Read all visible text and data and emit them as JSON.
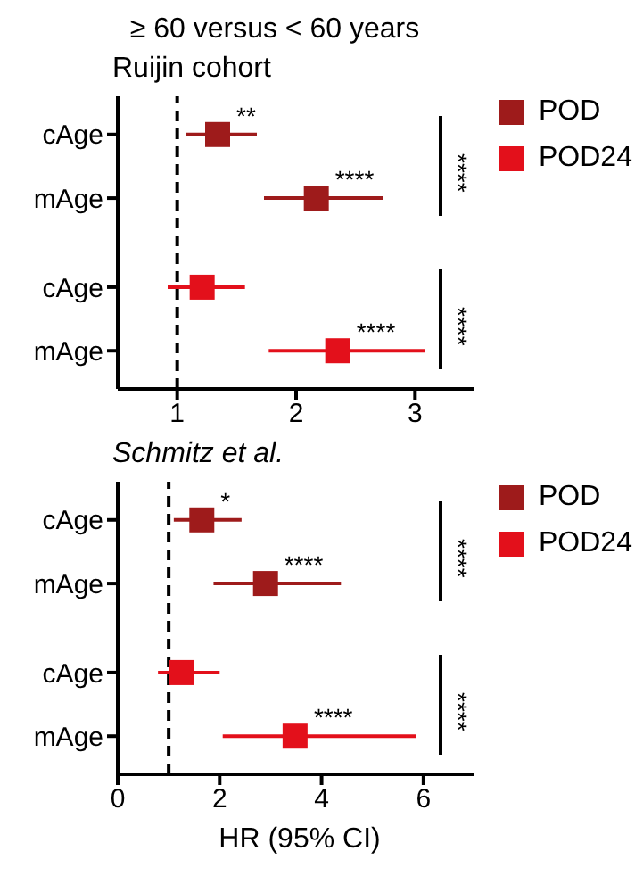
{
  "chart_data": [
    {
      "type": "scatter",
      "orientation": "horizontal",
      "title": "≥ 60 versus < 60 years",
      "subtitle": "Ruijin cohort",
      "categories": [
        "cAge",
        "mAge",
        "cAge",
        "mAge"
      ],
      "series": [
        {
          "name": "POD",
          "color": "#9e1b1b",
          "values": [
            1.34,
            2.17,
            null,
            null
          ],
          "errors": [
            [
              1.07,
              1.67
            ],
            [
              1.73,
              2.73
            ],
            null,
            null
          ],
          "value_labels": [
            "**",
            "****",
            null,
            null
          ]
        },
        {
          "name": "POD24",
          "color": "#e3101b",
          "values": [
            null,
            null,
            1.21,
            2.35
          ],
          "errors": [
            null,
            null,
            [
              0.92,
              1.57
            ],
            [
              1.77,
              3.08
            ]
          ],
          "value_labels": [
            null,
            null,
            null,
            "****"
          ]
        }
      ],
      "xlim": [
        0.5,
        3.5
      ],
      "xticks": [
        1,
        2,
        3
      ],
      "ref_lines": [
        {
          "axis": "x",
          "value": 1,
          "line_style": "dashed",
          "color": "#000000"
        }
      ],
      "annotations": [
        "****",
        "****"
      ],
      "marker": "square",
      "legend": "right",
      "grid": false
    },
    {
      "type": "scatter",
      "orientation": "horizontal",
      "subtitle": "Schmitz et al.",
      "xlabel": "HR (95% CI)",
      "categories": [
        "cAge",
        "mAge",
        "cAge",
        "mAge"
      ],
      "series": [
        {
          "name": "POD",
          "color": "#9e1b1b",
          "values": [
            1.65,
            2.9,
            null,
            null
          ],
          "errors": [
            [
              1.1,
              2.43
            ],
            [
              1.88,
              4.38
            ],
            null,
            null
          ],
          "value_labels": [
            "*",
            "****",
            null,
            null
          ]
        },
        {
          "name": "POD24",
          "color": "#e3101b",
          "values": [
            null,
            null,
            1.25,
            3.48
          ],
          "errors": [
            null,
            null,
            [
              0.79,
              2.0
            ],
            [
              2.06,
              5.85
            ]
          ],
          "value_labels": [
            null,
            null,
            null,
            "****"
          ]
        }
      ],
      "xlim": [
        0,
        7
      ],
      "xticks": [
        0,
        2,
        4,
        6
      ],
      "ref_lines": [
        {
          "axis": "x",
          "value": 1,
          "line_style": "dashed",
          "color": "#000000"
        }
      ],
      "annotations": [
        "****",
        "****"
      ],
      "marker": "square",
      "legend": "right",
      "grid": false
    }
  ]
}
